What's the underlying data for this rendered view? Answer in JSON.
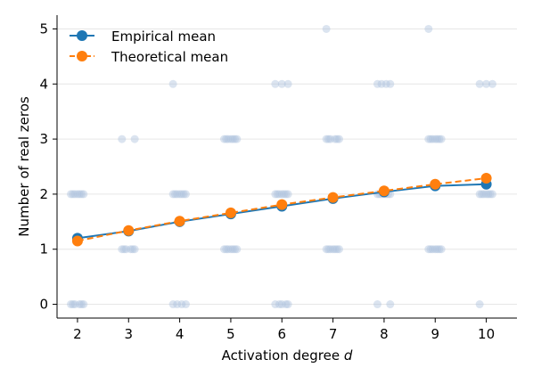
{
  "chart_data": {
    "type": "line",
    "xlabel": "Activation degree",
    "xlabel_symbol": "d",
    "ylabel": "Number of real zeros",
    "x_ticks": [
      2,
      3,
      4,
      5,
      6,
      7,
      8,
      9,
      10
    ],
    "y_ticks": [
      0,
      1,
      2,
      3,
      4,
      5
    ],
    "xlim": [
      1.6,
      10.6
    ],
    "ylim": [
      -0.25,
      5.25
    ],
    "grid": "horizontal",
    "legend_position": "top-left",
    "series": [
      {
        "name": "Empirical mean",
        "color": "#1f77b4",
        "line_style": "solid",
        "marker": "circle",
        "x": [
          2,
          3,
          4,
          5,
          6,
          7,
          8,
          9,
          10
        ],
        "y": [
          1.2,
          1.33,
          1.5,
          1.64,
          1.78,
          1.92,
          2.04,
          2.15,
          2.18
        ]
      },
      {
        "name": "Theoretical mean",
        "color": "#ff7f0e",
        "line_style": "dashed",
        "marker": "circle",
        "x": [
          2,
          3,
          4,
          5,
          6,
          7,
          8,
          9,
          10
        ],
        "y": [
          1.15,
          1.34,
          1.51,
          1.66,
          1.81,
          1.94,
          2.06,
          2.18,
          2.29
        ]
      }
    ],
    "samples": {
      "color": "#b0c4de",
      "x_jitter": [
        -0.13,
        -0.09,
        -0.05,
        0,
        0.04,
        0.08,
        0.12
      ],
      "counts_by_degree": {
        "2": {
          "0": 6,
          "1": 0,
          "2": 7,
          "3": 0,
          "4": 0,
          "5": 0
        },
        "3": {
          "0": 0,
          "1": 6,
          "2": 0,
          "3": 2,
          "4": 0,
          "5": 0
        },
        "4": {
          "0": 4,
          "1": 0,
          "2": 7,
          "3": 0,
          "4": 1,
          "5": 0
        },
        "5": {
          "0": 0,
          "1": 7,
          "2": 0,
          "3": 7,
          "4": 0,
          "5": 0
        },
        "6": {
          "0": 5,
          "1": 0,
          "2": 7,
          "3": 0,
          "4": 3,
          "5": 0
        },
        "7": {
          "0": 0,
          "1": 7,
          "2": 0,
          "3": 6,
          "4": 0,
          "5": 1
        },
        "8": {
          "0": 2,
          "1": 0,
          "2": 7,
          "3": 0,
          "4": 4,
          "5": 0
        },
        "9": {
          "0": 0,
          "1": 7,
          "2": 0,
          "3": 7,
          "4": 0,
          "5": 1
        },
        "10": {
          "0": 1,
          "1": 0,
          "2": 7,
          "3": 0,
          "4": 3,
          "5": 0
        }
      }
    }
  }
}
